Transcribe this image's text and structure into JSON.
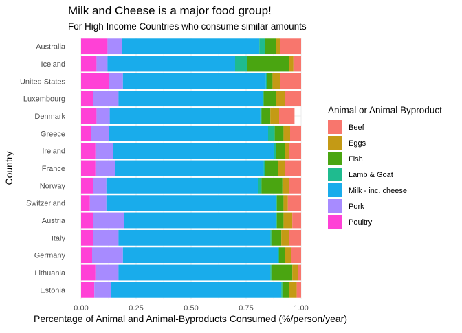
{
  "chart_data": {
    "type": "bar",
    "orientation": "horizontal",
    "stacked": "percent",
    "title": "Milk and Cheese is a major food group!",
    "subtitle": "For High Income Countries who consume similar amounts",
    "xlabel": "Percentage of Animal and Animal-Byproducts Consumed (%/person/year)",
    "ylabel": "Country",
    "xlim": [
      0,
      1
    ],
    "xticks": [
      "0.00",
      "0.25",
      "0.50",
      "0.75",
      "1.00"
    ],
    "grid": true,
    "legend_position": "right",
    "legend_title": "Animal or Animal Byproduct",
    "categories": [
      "Australia",
      "Iceland",
      "United States",
      "Luxembourg",
      "Denmark",
      "Greece",
      "Ireland",
      "France",
      "Norway",
      "Switzerland",
      "Austria",
      "Italy",
      "Germany",
      "Lithuania",
      "Estonia"
    ],
    "series": [
      {
        "name": "Poultry",
        "color": "#FF41D6",
        "values": [
          0.12,
          0.07,
          0.125,
          0.055,
          0.07,
          0.045,
          0.065,
          0.065,
          0.055,
          0.04,
          0.055,
          0.055,
          0.05,
          0.065,
          0.06
        ]
      },
      {
        "name": "Pork",
        "color": "#A78BFF",
        "values": [
          0.065,
          0.05,
          0.065,
          0.115,
          0.06,
          0.08,
          0.08,
          0.09,
          0.06,
          0.075,
          0.14,
          0.115,
          0.14,
          0.105,
          0.075
        ]
      },
      {
        "name": "Milk - inc. cheese",
        "color": "#19ACEB",
        "values": [
          0.625,
          0.58,
          0.65,
          0.655,
          0.685,
          0.725,
          0.73,
          0.675,
          0.69,
          0.77,
          0.69,
          0.69,
          0.705,
          0.69,
          0.775
        ]
      },
      {
        "name": "Lamb & Goat",
        "color": "#1FBB8F",
        "values": [
          0.025,
          0.055,
          0.005,
          0.005,
          0.005,
          0.03,
          0.01,
          0.005,
          0.015,
          0.005,
          0.005,
          0.005,
          0.005,
          0.005,
          0.005
        ]
      },
      {
        "name": "Fish",
        "color": "#4AA511",
        "values": [
          0.05,
          0.19,
          0.025,
          0.055,
          0.04,
          0.04,
          0.04,
          0.06,
          0.095,
          0.03,
          0.03,
          0.045,
          0.025,
          0.095,
          0.03
        ]
      },
      {
        "name": "Eggs",
        "color": "#C49A15",
        "values": [
          0.02,
          0.02,
          0.035,
          0.04,
          0.04,
          0.03,
          0.02,
          0.03,
          0.03,
          0.02,
          0.04,
          0.035,
          0.03,
          0.025,
          0.035
        ]
      },
      {
        "name": "Beef",
        "color": "#F8766D",
        "values": [
          0.095,
          0.035,
          0.095,
          0.075,
          0.07,
          0.05,
          0.055,
          0.075,
          0.055,
          0.06,
          0.04,
          0.055,
          0.045,
          0.015,
          0.02
        ]
      }
    ],
    "legend_order": [
      "Beef",
      "Eggs",
      "Fish",
      "Lamb & Goat",
      "Milk - inc. cheese",
      "Pork",
      "Poultry"
    ]
  }
}
